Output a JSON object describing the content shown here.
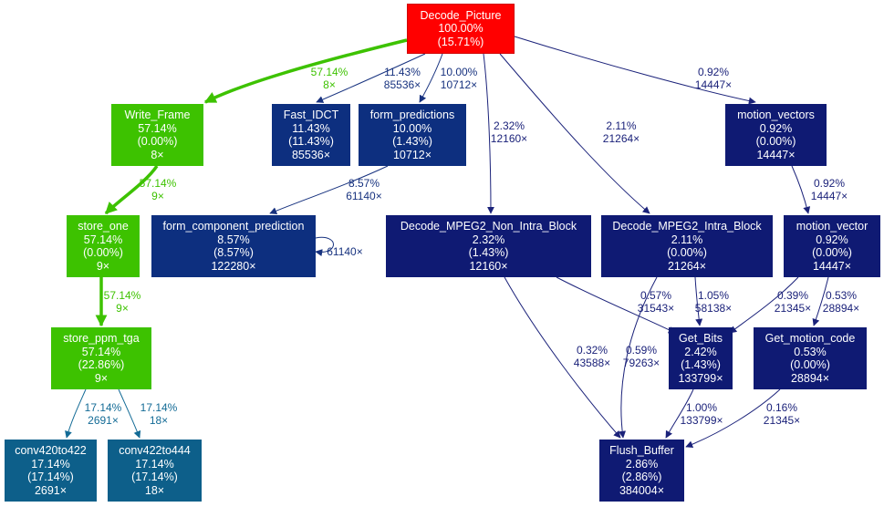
{
  "colors": {
    "red": "#ff0000",
    "green": "#3dc200",
    "teal": "#0d5f8a",
    "navy": "#0d2f7f",
    "indigo": "#0f1a73",
    "edge_green": "#3dc200",
    "edge_teal": "#136b96",
    "edge_navy": "#17327f",
    "edge_indigo": "#1b227a"
  },
  "nodes": [
    {
      "id": "decode_picture",
      "name": "Decode_Picture",
      "pct": "100.00%",
      "self": "(15.71%)",
      "calls": null,
      "color": "red"
    },
    {
      "id": "write_frame",
      "name": "Write_Frame",
      "pct": "57.14%",
      "self": "(0.00%)",
      "calls": "8×",
      "color": "green"
    },
    {
      "id": "fast_idct",
      "name": "Fast_IDCT",
      "pct": "11.43%",
      "self": "(11.43%)",
      "calls": "85536×",
      "color": "navy"
    },
    {
      "id": "form_predictions",
      "name": "form_predictions",
      "pct": "10.00%",
      "self": "(1.43%)",
      "calls": "10712×",
      "color": "navy"
    },
    {
      "id": "motion_vectors",
      "name": "motion_vectors",
      "pct": "0.92%",
      "self": "(0.00%)",
      "calls": "14447×",
      "color": "indigo"
    },
    {
      "id": "store_one",
      "name": "store_one",
      "pct": "57.14%",
      "self": "(0.00%)",
      "calls": "9×",
      "color": "green"
    },
    {
      "id": "form_component_prediction",
      "name": "form_component_prediction",
      "pct": "8.57%",
      "self": "(8.57%)",
      "calls": "122280×",
      "color": "navy"
    },
    {
      "id": "decode_non_intra",
      "name": "Decode_MPEG2_Non_Intra_Block",
      "pct": "2.32%",
      "self": "(1.43%)",
      "calls": "12160×",
      "color": "indigo"
    },
    {
      "id": "decode_intra",
      "name": "Decode_MPEG2_Intra_Block",
      "pct": "2.11%",
      "self": "(0.00%)",
      "calls": "21264×",
      "color": "indigo"
    },
    {
      "id": "motion_vector",
      "name": "motion_vector",
      "pct": "0.92%",
      "self": "(0.00%)",
      "calls": "14447×",
      "color": "indigo"
    },
    {
      "id": "store_ppm_tga",
      "name": "store_ppm_tga",
      "pct": "57.14%",
      "self": "(22.86%)",
      "calls": "9×",
      "color": "green"
    },
    {
      "id": "get_bits",
      "name": "Get_Bits",
      "pct": "2.42%",
      "self": "(1.43%)",
      "calls": "133799×",
      "color": "indigo"
    },
    {
      "id": "get_motion_code",
      "name": "Get_motion_code",
      "pct": "0.53%",
      "self": "(0.00%)",
      "calls": "28894×",
      "color": "indigo"
    },
    {
      "id": "conv420to422",
      "name": "conv420to422",
      "pct": "17.14%",
      "self": "(17.14%)",
      "calls": "2691×",
      "color": "teal"
    },
    {
      "id": "conv422to444",
      "name": "conv422to444",
      "pct": "17.14%",
      "self": "(17.14%)",
      "calls": "18×",
      "color": "teal"
    },
    {
      "id": "flush_buffer",
      "name": "Flush_Buffer",
      "pct": "2.86%",
      "self": "(2.86%)",
      "calls": "384004×",
      "color": "indigo"
    }
  ],
  "edges": [
    {
      "id": "e_dp_wf",
      "from": "decode_picture",
      "to": "write_frame",
      "pct": "57.14%",
      "calls": "8×",
      "color": "edge_green",
      "weight": "heavy"
    },
    {
      "id": "e_dp_fidct",
      "from": "decode_picture",
      "to": "fast_idct",
      "pct": "11.43%",
      "calls": "85536×",
      "color": "edge_navy",
      "weight": "light"
    },
    {
      "id": "e_dp_fp",
      "from": "decode_picture",
      "to": "form_predictions",
      "pct": "10.00%",
      "calls": "10712×",
      "color": "edge_navy",
      "weight": "light"
    },
    {
      "id": "e_dp_nonintra",
      "from": "decode_picture",
      "to": "decode_non_intra",
      "pct": "2.32%",
      "calls": "12160×",
      "color": "edge_indigo",
      "weight": "light"
    },
    {
      "id": "e_dp_intra",
      "from": "decode_picture",
      "to": "decode_intra",
      "pct": "2.11%",
      "calls": "21264×",
      "color": "edge_indigo",
      "weight": "light"
    },
    {
      "id": "e_dp_mvs",
      "from": "decode_picture",
      "to": "motion_vectors",
      "pct": "0.92%",
      "calls": "14447×",
      "color": "edge_indigo",
      "weight": "light"
    },
    {
      "id": "e_wf_so",
      "from": "write_frame",
      "to": "store_one",
      "pct": "57.14%",
      "calls": "9×",
      "color": "edge_green",
      "weight": "heavy"
    },
    {
      "id": "e_so_spt",
      "from": "store_one",
      "to": "store_ppm_tga",
      "pct": "57.14%",
      "calls": "9×",
      "color": "edge_green",
      "weight": "heavy"
    },
    {
      "id": "e_spt_c420",
      "from": "store_ppm_tga",
      "to": "conv420to422",
      "pct": "17.14%",
      "calls": "2691×",
      "color": "edge_teal",
      "weight": "light"
    },
    {
      "id": "e_spt_c422",
      "from": "store_ppm_tga",
      "to": "conv422to444",
      "pct": "17.14%",
      "calls": "18×",
      "color": "edge_teal",
      "weight": "light"
    },
    {
      "id": "e_fp_fcp",
      "from": "form_predictions",
      "to": "form_component_prediction",
      "pct": "8.57%",
      "calls": "61140×",
      "color": "edge_navy",
      "weight": "light"
    },
    {
      "id": "e_fcp_self",
      "from": "form_component_prediction",
      "to": "form_component_prediction",
      "pct": "",
      "calls": "61140×",
      "color": "edge_navy",
      "weight": "light"
    },
    {
      "id": "e_mvs_mv",
      "from": "motion_vectors",
      "to": "motion_vector",
      "pct": "0.92%",
      "calls": "14447×",
      "color": "edge_indigo",
      "weight": "light"
    },
    {
      "id": "e_nonintra_flush",
      "from": "decode_non_intra",
      "to": "flush_buffer",
      "pct": "0.32%",
      "calls": "43588×",
      "color": "edge_indigo",
      "weight": "light"
    },
    {
      "id": "e_nonintra_bits",
      "from": "decode_non_intra",
      "to": "get_bits",
      "pct": "0.57%",
      "calls": "31543×",
      "color": "edge_indigo",
      "weight": "light"
    },
    {
      "id": "e_intra_flush",
      "from": "decode_intra",
      "to": "flush_buffer",
      "pct": "0.59%",
      "calls": "79263×",
      "color": "edge_indigo",
      "weight": "light"
    },
    {
      "id": "e_intra_bits",
      "from": "decode_intra",
      "to": "get_bits",
      "pct": "1.05%",
      "calls": "58138×",
      "color": "edge_indigo",
      "weight": "light"
    },
    {
      "id": "e_mv_bits",
      "from": "motion_vector",
      "to": "get_bits",
      "pct": "0.39%",
      "calls": "21345×",
      "color": "edge_indigo",
      "weight": "light"
    },
    {
      "id": "e_mv_gmc",
      "from": "motion_vector",
      "to": "get_motion_code",
      "pct": "0.53%",
      "calls": "28894×",
      "color": "edge_indigo",
      "weight": "light"
    },
    {
      "id": "e_bits_flush",
      "from": "get_bits",
      "to": "flush_buffer",
      "pct": "1.00%",
      "calls": "133799×",
      "color": "edge_indigo",
      "weight": "light"
    },
    {
      "id": "e_gmc_flush",
      "from": "get_motion_code",
      "to": "flush_buffer",
      "pct": "0.16%",
      "calls": "21345×",
      "color": "edge_indigo",
      "weight": "light"
    }
  ]
}
